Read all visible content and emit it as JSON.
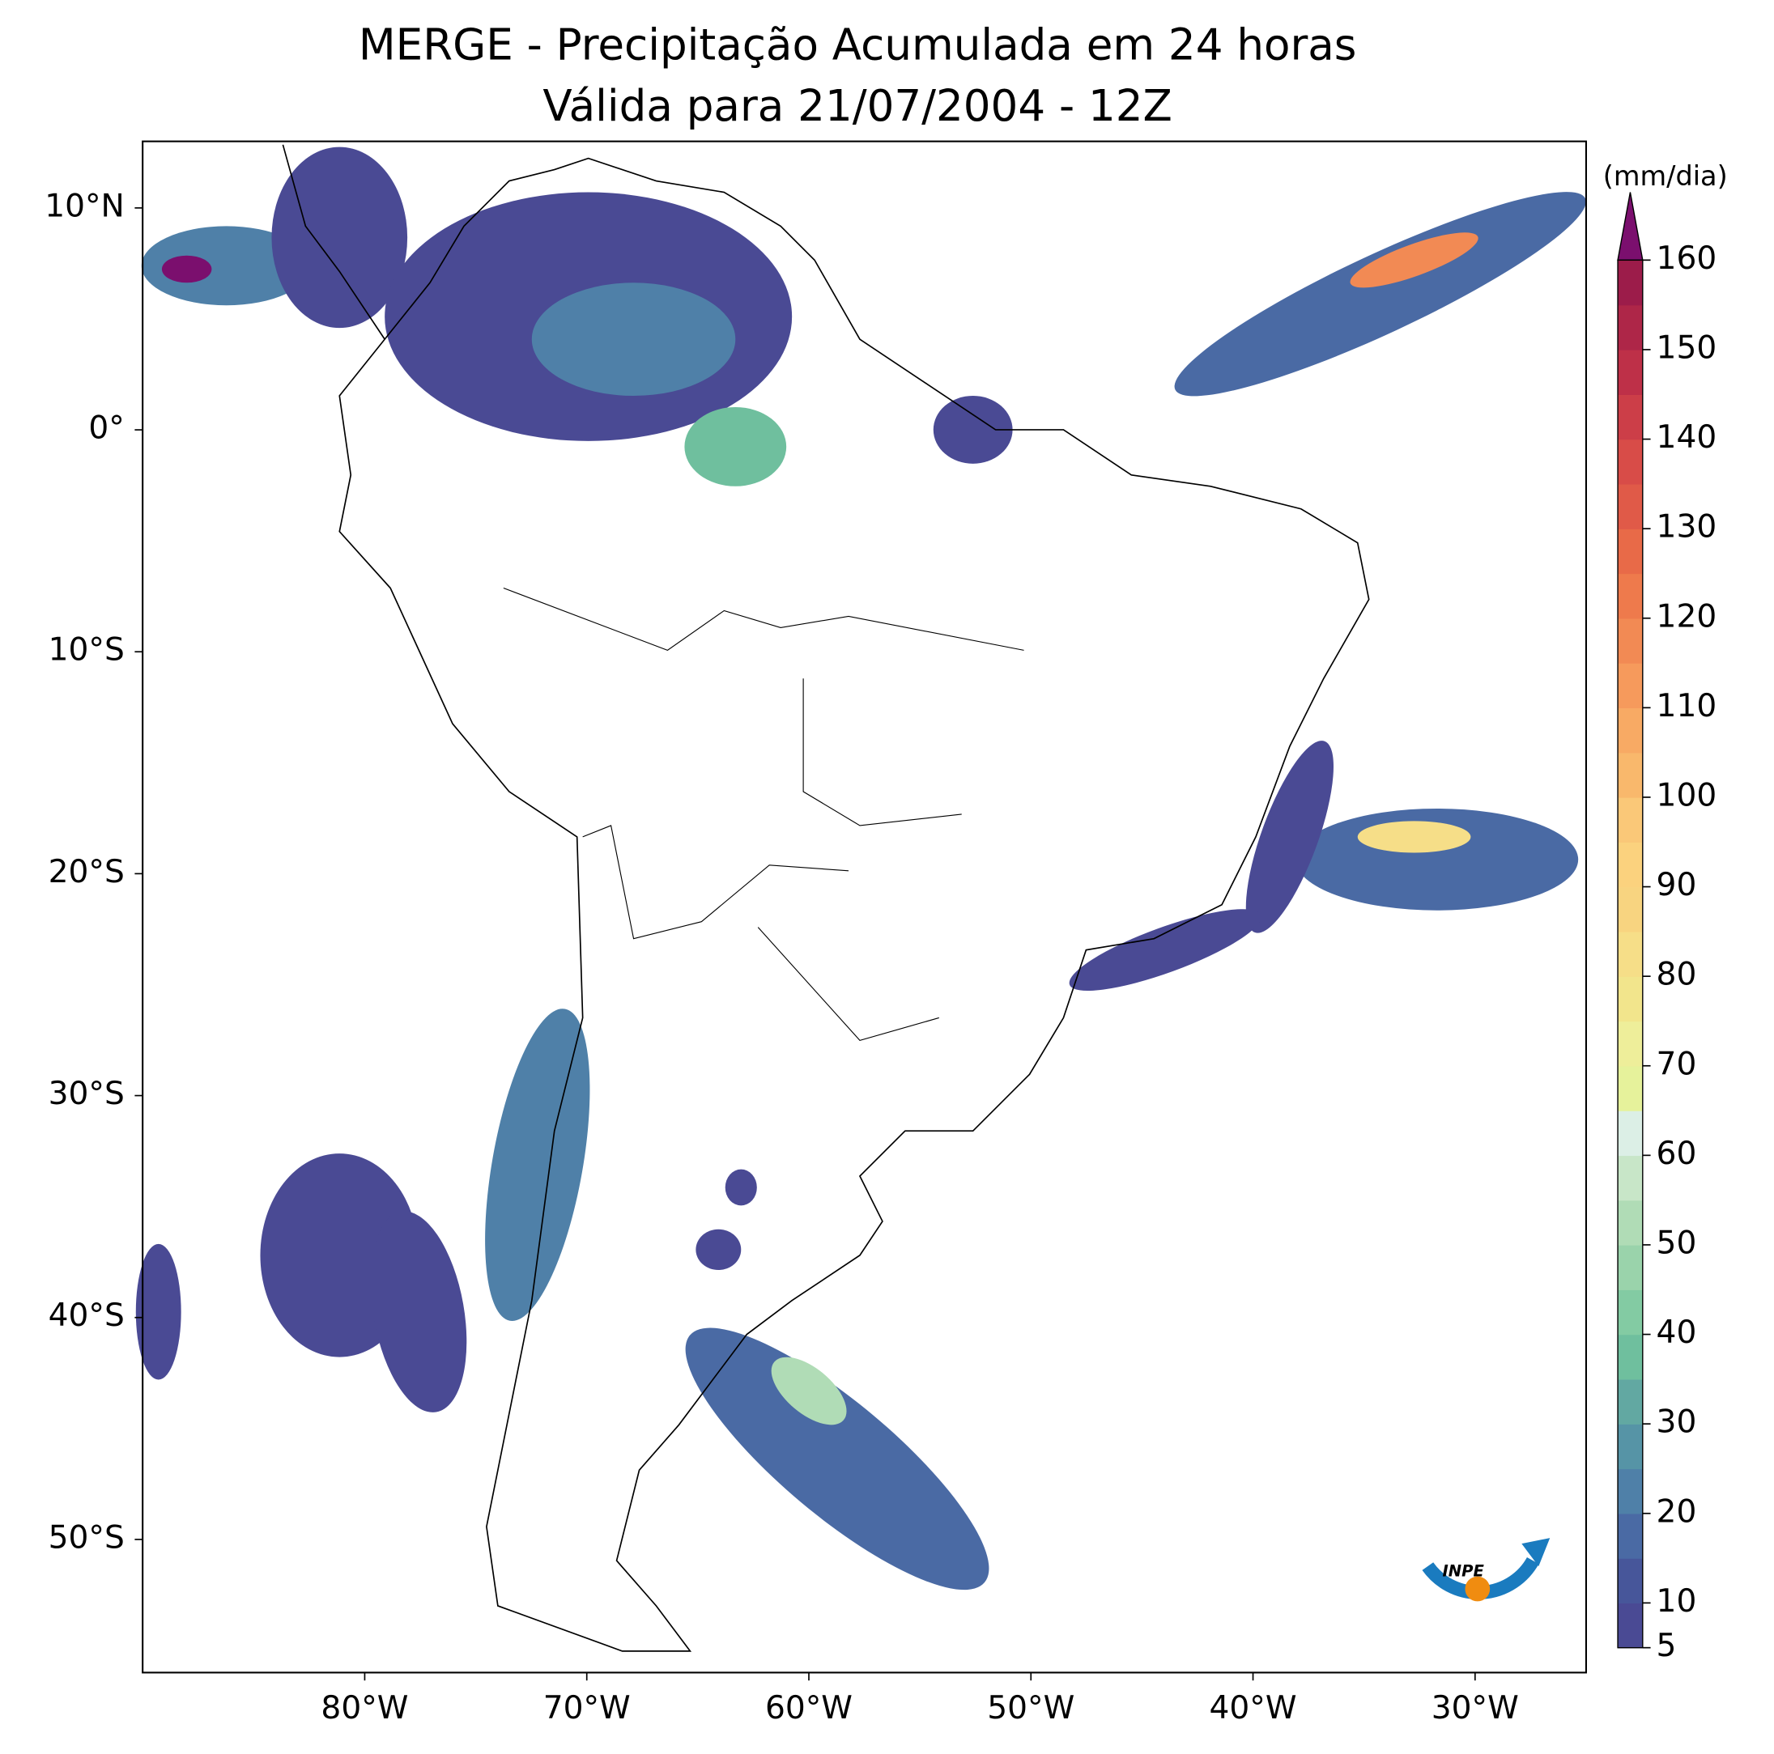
{
  "chart_data": {
    "type": "map",
    "title": "MERGE - Precipitação Acumulada em 24 horas",
    "subtitle": "Válida para 21/07/2004 - 12Z",
    "xlim": [
      -90,
      -25
    ],
    "ylim": [
      -56,
      13
    ],
    "xticks": [
      {
        "value": -80,
        "label": "80°W"
      },
      {
        "value": -70,
        "label": "70°W"
      },
      {
        "value": -60,
        "label": "60°W"
      },
      {
        "value": -50,
        "label": "50°W"
      },
      {
        "value": -40,
        "label": "40°W"
      },
      {
        "value": -30,
        "label": "30°W"
      }
    ],
    "yticks": [
      {
        "value": 10,
        "label": "10°N"
      },
      {
        "value": 0,
        "label": "0°"
      },
      {
        "value": -10,
        "label": "10°S"
      },
      {
        "value": -20,
        "label": "20°S"
      },
      {
        "value": -30,
        "label": "30°S"
      },
      {
        "value": -40,
        "label": "40°S"
      },
      {
        "value": -50,
        "label": "50°S"
      }
    ],
    "colorbar": {
      "label": "(mm/dia)",
      "lim": [
        5,
        160
      ],
      "levels": [
        5,
        10,
        15,
        20,
        25,
        30,
        35,
        40,
        45,
        50,
        55,
        60,
        65,
        70,
        75,
        80,
        85,
        90,
        95,
        100,
        105,
        110,
        115,
        120,
        125,
        130,
        135,
        140,
        145,
        150,
        155,
        160
      ],
      "colors": [
        "#4a4a94",
        "#47569a",
        "#4a6aa4",
        "#4f80a8",
        "#5694a6",
        "#62a8a2",
        "#6fbf9e",
        "#83cba3",
        "#9ad3ab",
        "#b0dcb6",
        "#c8e6c8",
        "#dcefe6",
        "#e6f29b",
        "#eeee9a",
        "#f2e58c",
        "#f6de88",
        "#f8d480",
        "#fbd27e",
        "#fac878",
        "#f9b86c",
        "#f8aa64",
        "#f69a5c",
        "#f28a54",
        "#ee7a4c",
        "#e86a48",
        "#e05a48",
        "#d84c48",
        "#cc3e48",
        "#be3048",
        "#ae2648",
        "#9c1c4a"
      ],
      "extend_color": "#7b0f6e",
      "ticks": [
        5,
        10,
        20,
        30,
        40,
        50,
        60,
        70,
        80,
        90,
        100,
        110,
        120,
        130,
        140,
        150,
        160
      ]
    }
  },
  "logo": {
    "text": "INPE"
  }
}
